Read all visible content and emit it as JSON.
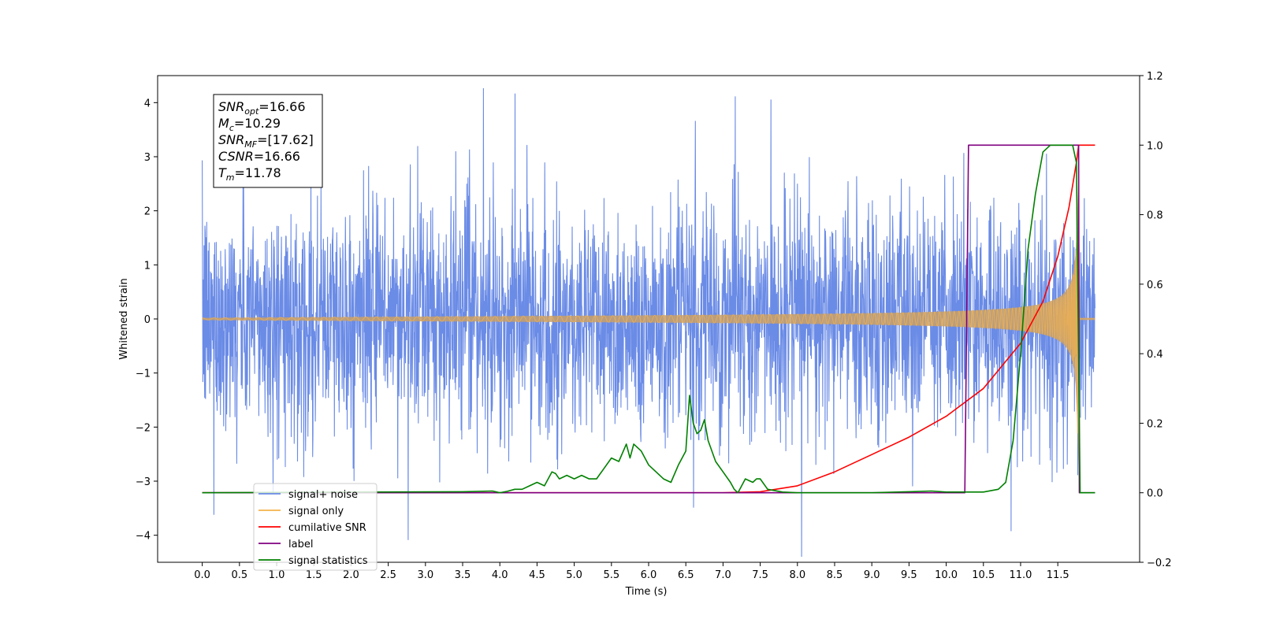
{
  "chart_data": {
    "type": "line",
    "xlabel": "Time (s)",
    "ylabel": "Whitened strain",
    "xlim": [
      -0.6,
      12.6
    ],
    "ylim": [
      -4.5,
      4.5
    ],
    "ylim_right": [
      -0.2,
      1.2
    ],
    "x_ticks": [
      "0.0",
      "0.5",
      "1.0",
      "1.5",
      "2.0",
      "2.5",
      "3.0",
      "3.5",
      "4.0",
      "4.5",
      "5.0",
      "5.5",
      "6.0",
      "6.5",
      "7.0",
      "7.5",
      "8.0",
      "8.5",
      "9.0",
      "9.5",
      "10.0",
      "10.5",
      "11.0",
      "11.5"
    ],
    "y_ticks_left": [
      "−4",
      "−3",
      "−2",
      "−1",
      "0",
      "1",
      "2",
      "3",
      "4"
    ],
    "y_ticks_right": [
      "−0.2",
      "0.0",
      "0.2",
      "0.4",
      "0.6",
      "0.8",
      "1.0",
      "1.2"
    ],
    "grid": false,
    "legend_position": "lower-left",
    "annotation": [
      {
        "main": "SNR",
        "sub": "opt",
        "rest": "=16.66"
      },
      {
        "main": "M",
        "sub": "c",
        "rest": "=10.29"
      },
      {
        "main": "SNR",
        "sub": "MF",
        "rest": "=[17.62]"
      },
      {
        "main": "CSNR",
        "sub": "",
        "rest": "=16.66"
      },
      {
        "main": "T",
        "sub": "m",
        "rest": "=11.78"
      }
    ],
    "series": [
      {
        "name": "signal+ noise",
        "axis": "left",
        "color": "#6a8be6",
        "noise_std": 1.0,
        "x_range": [
          0,
          12
        ]
      },
      {
        "name": "signal only",
        "axis": "left",
        "color": "#f5b24a",
        "chirp_merger_time": 11.78,
        "max_amplitude": 3.2,
        "x_range": [
          0,
          12
        ]
      },
      {
        "name": "cumilative SNR",
        "axis": "right",
        "color": "#ff0000",
        "x": [
          0,
          7.0,
          7.5,
          8.0,
          8.5,
          9.0,
          9.5,
          10.0,
          10.5,
          11.0,
          11.3,
          11.5,
          11.65,
          11.75,
          11.78,
          12.0
        ],
        "y": [
          0,
          0,
          0.003,
          0.02,
          0.06,
          0.11,
          0.16,
          0.22,
          0.3,
          0.43,
          0.55,
          0.68,
          0.82,
          0.95,
          1.0,
          1.0
        ]
      },
      {
        "name": "label",
        "axis": "right",
        "color": "#800080",
        "x": [
          0,
          10.25,
          10.3,
          11.78,
          11.79,
          12.0
        ],
        "y": [
          0,
          0,
          1.0,
          1.0,
          0,
          0
        ]
      },
      {
        "name": "signal statistics",
        "axis": "right",
        "color": "#008000",
        "x": [
          0,
          3.5,
          3.9,
          4.0,
          4.1,
          4.2,
          4.3,
          4.4,
          4.5,
          4.6,
          4.7,
          4.75,
          4.8,
          4.9,
          5.0,
          5.1,
          5.2,
          5.3,
          5.4,
          5.5,
          5.6,
          5.7,
          5.75,
          5.8,
          5.9,
          6.0,
          6.1,
          6.2,
          6.3,
          6.4,
          6.5,
          6.55,
          6.6,
          6.65,
          6.7,
          6.75,
          6.8,
          6.9,
          7.0,
          7.1,
          7.15,
          7.2,
          7.3,
          7.4,
          7.45,
          7.5,
          7.6,
          7.8,
          8.0,
          8.5,
          9.0,
          9.5,
          9.8,
          10.0,
          10.5,
          10.7,
          10.8,
          10.9,
          11.0,
          11.1,
          11.2,
          11.3,
          11.4,
          11.5,
          11.6,
          11.7,
          11.75,
          11.8,
          11.9,
          12.0
        ],
        "y": [
          0,
          0.003,
          0.005,
          0.0,
          0.004,
          0.01,
          0.01,
          0.02,
          0.03,
          0.02,
          0.06,
          0.055,
          0.04,
          0.05,
          0.04,
          0.05,
          0.04,
          0.04,
          0.07,
          0.1,
          0.09,
          0.14,
          0.1,
          0.14,
          0.12,
          0.08,
          0.06,
          0.04,
          0.03,
          0.08,
          0.12,
          0.28,
          0.2,
          0.17,
          0.18,
          0.21,
          0.15,
          0.09,
          0.06,
          0.03,
          0.01,
          0.0,
          0.04,
          0.03,
          0.04,
          0.04,
          0.01,
          0.002,
          0.0,
          0.0,
          0.0,
          0.003,
          0.005,
          0.002,
          0.002,
          0.01,
          0.03,
          0.15,
          0.4,
          0.7,
          0.86,
          0.98,
          1.0,
          1.0,
          1.0,
          1.0,
          0.95,
          0.0,
          0.0,
          0.0
        ]
      }
    ]
  },
  "legend": {
    "items": [
      {
        "label": "signal+ noise",
        "color": "#6a8be6"
      },
      {
        "label": "signal only",
        "color": "#f5b24a"
      },
      {
        "label": "cumilative SNR",
        "color": "#ff0000"
      },
      {
        "label": "label",
        "color": "#800080"
      },
      {
        "label": "signal statistics",
        "color": "#008000"
      }
    ]
  }
}
